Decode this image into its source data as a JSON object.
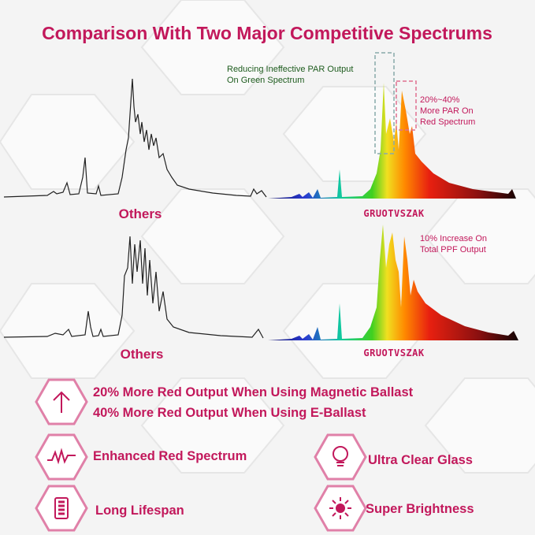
{
  "header": {
    "title": "Comparison With Two Major Competitive Spectrums"
  },
  "comparisons": [
    {
      "others_label": "Others",
      "brand_label": "GRUOTVSZAK",
      "annotations": [
        {
          "lines": [
            "Reducing Ineffective PAR Output",
            "On Green Spectrum"
          ]
        },
        {
          "lines": [
            "20%~40%",
            "More PAR On",
            "Red Spectrum"
          ]
        }
      ]
    },
    {
      "others_label": "Others",
      "brand_label": "GRUOTVSZAK",
      "annotations": [
        {
          "lines": [
            "10% Increase On",
            "Total PPF Output"
          ]
        }
      ]
    }
  ],
  "features": [
    {
      "lines": [
        "20% More Red Output When Using Magnetic Ballast",
        "40% More Red Output When Using E-Ballast"
      ]
    },
    {
      "lines": [
        "Enhanced Red Spectrum"
      ]
    },
    {
      "lines": [
        "Ultra Clear Glass"
      ]
    },
    {
      "lines": [
        "Long Lifespan"
      ]
    },
    {
      "lines": [
        "Super Brightness"
      ]
    }
  ]
}
